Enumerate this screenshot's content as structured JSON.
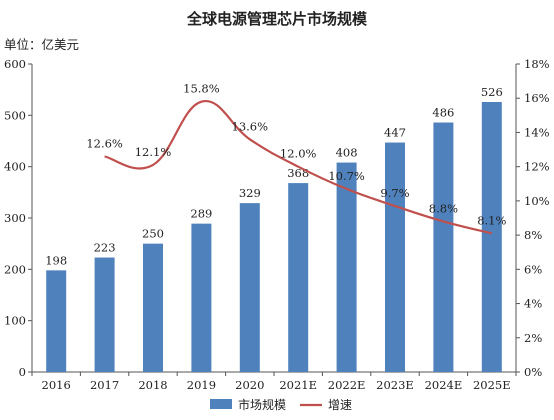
{
  "chart_data": {
    "type": "bar",
    "title": "全球电源管理芯片市场规模",
    "unit_label": "单位：亿美元",
    "categories": [
      "2016",
      "2017",
      "2018",
      "2019",
      "2020",
      "2021E",
      "2022E",
      "2023E",
      "2024E",
      "2025E"
    ],
    "series": [
      {
        "name": "市场规模",
        "type": "bar",
        "axis": "left",
        "color": "#4f81bd",
        "values": [
          198,
          223,
          250,
          289,
          329,
          368,
          408,
          447,
          486,
          526
        ],
        "labels": [
          "198",
          "223",
          "250",
          "289",
          "329",
          "368",
          "408",
          "447",
          "486",
          "526"
        ]
      },
      {
        "name": "增速",
        "type": "line",
        "axis": "right",
        "color": "#c0504d",
        "smooth": true,
        "values": [
          null,
          12.6,
          12.1,
          15.8,
          13.6,
          12.0,
          10.7,
          9.7,
          8.8,
          8.1
        ],
        "labels": [
          "",
          "12.6%",
          "12.1%",
          "15.8%",
          "13.6%",
          "12.0%",
          "10.7%",
          "9.7%",
          "8.8%",
          "8.1%"
        ]
      }
    ],
    "y_left": {
      "min": 0,
      "max": 600,
      "step": 100,
      "ticks": [
        "0",
        "100",
        "200",
        "300",
        "400",
        "500",
        "600"
      ]
    },
    "y_right": {
      "min": 0,
      "max": 18,
      "step": 2,
      "ticks": [
        "0%",
        "2%",
        "4%",
        "6%",
        "8%",
        "10%",
        "12%",
        "14%",
        "16%",
        "18%"
      ]
    },
    "grid": false,
    "legend_position": "bottom"
  }
}
